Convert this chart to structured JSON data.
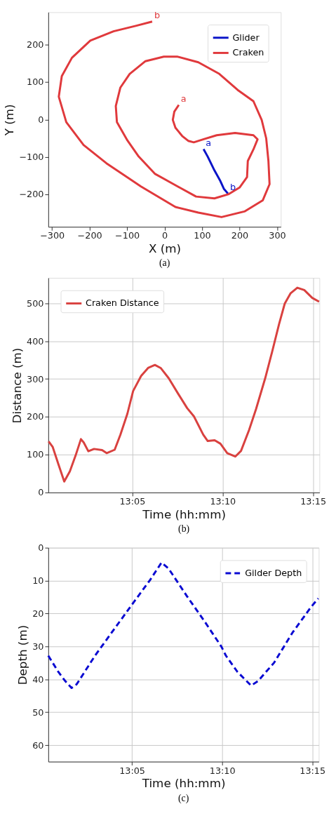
{
  "chart_data": [
    {
      "type": "line",
      "xlabel": "X (m)",
      "ylabel": "Y (m)",
      "xlim": [
        -310,
        310
      ],
      "ylim": [
        -287,
        287
      ],
      "xticks": [
        -300,
        -200,
        -100,
        0,
        100,
        200,
        300
      ],
      "yticks": [
        -200,
        -100,
        0,
        100,
        200
      ],
      "grid": false,
      "legend": "top right",
      "series": [
        {
          "name": "Glider",
          "color": "#0a14c8",
          "x": [
            104,
            115,
            133,
            148,
            158,
            169
          ],
          "values": [
            -79,
            -99,
            -136,
            -163,
            -185,
            -198
          ]
        },
        {
          "name": "Craken",
          "color": "#e0393c",
          "x": [
            38,
            26,
            22,
            29,
            47,
            63,
            78,
            103,
            139,
            188,
            237,
            248,
            237,
            222,
            220,
            200,
            170,
            133,
            84,
            35,
            -26,
            -69,
            -99,
            -127,
            -130,
            -118,
            -93,
            -51,
            -2,
            35,
            90,
            146,
            195,
            237,
            259,
            271,
            277,
            280,
            262,
            213,
            152,
            90,
            29,
            -63,
            -155,
            -216,
            -262,
            -282,
            -274,
            -247,
            -198,
            -136,
            -75,
            -33
          ],
          "values": [
            39,
            21,
            -1,
            -22,
            -44,
            -57,
            -61,
            -53,
            -42,
            -36,
            -42,
            -53,
            -80,
            -111,
            -154,
            -182,
            -200,
            -211,
            -206,
            -179,
            -145,
            -99,
            -56,
            -7,
            36,
            85,
            122,
            156,
            168,
            168,
            153,
            122,
            79,
            49,
            -1,
            -50,
            -111,
            -173,
            -216,
            -246,
            -261,
            -249,
            -234,
            -179,
            -117,
            -68,
            -7,
            61,
            116,
            165,
            211,
            236,
            251,
            262
          ]
        }
      ],
      "annotations": [
        {
          "text": "a",
          "x": 38,
          "y": 39
        },
        {
          "text": "b",
          "x": -33,
          "y": 262
        },
        {
          "text": "a",
          "x": 104,
          "y": -79
        },
        {
          "text": "b",
          "x": 169,
          "y": -198
        },
        "(a)"
      ]
    },
    {
      "type": "line",
      "xlabel": "Time (hh:mm)",
      "ylabel": "Distance (m)",
      "xlim": [
        13.006,
        13.256
      ],
      "ylim": [
        0,
        567
      ],
      "xticks": [
        {
          "value": 13.0833,
          "label": "13:05"
        },
        {
          "value": 13.1667,
          "label": "13:10"
        },
        {
          "value": 13.25,
          "label": "13:15"
        }
      ],
      "yticks": [
        0,
        100,
        200,
        300,
        400,
        500
      ],
      "grid": true,
      "legend": "top left",
      "series": [
        {
          "name": "Craken Distance",
          "color": "#d9413f",
          "x": [
            13.0063,
            13.0101,
            13.0154,
            13.0207,
            13.0259,
            13.0312,
            13.0361,
            13.0387,
            13.0429,
            13.0482,
            13.0556,
            13.0598,
            13.0672,
            13.0725,
            13.0789,
            13.0842,
            13.0916,
            13.098,
            13.1043,
            13.1096,
            13.117,
            13.1255,
            13.134,
            13.1403,
            13.1488,
            13.153,
            13.1594,
            13.1647,
            13.171,
            13.1784,
            13.1837,
            13.1911,
            13.1975,
            13.206,
            13.2123,
            13.2187,
            13.224,
            13.2293,
            13.2356,
            13.242,
            13.2494,
            13.2557
          ],
          "values": [
            135,
            120,
            74,
            29,
            56,
            98,
            141,
            132,
            109,
            115,
            112,
            104,
            113,
            153,
            208,
            268,
            308,
            329,
            337,
            329,
            302,
            262,
            223,
            201,
            153,
            136,
            138,
            129,
            104,
            95,
            110,
            165,
            220,
            302,
            371,
            444,
            499,
            526,
            541,
            535,
            514,
            504
          ]
        }
      ],
      "annotations": [
        "(b)"
      ]
    },
    {
      "type": "line",
      "xlabel": "Time (hh:mm)",
      "ylabel": "Depth (m)",
      "xlim": [
        13.006,
        13.256
      ],
      "ylim": [
        65,
        0
      ],
      "xticks": [
        {
          "value": 13.0833,
          "label": "13:05"
        },
        {
          "value": 13.1667,
          "label": "13:10"
        },
        {
          "value": 13.25,
          "label": "13:15"
        }
      ],
      "yticks": [
        0,
        10,
        20,
        30,
        40,
        50,
        60
      ],
      "grid": true,
      "legend": "top right",
      "line_style": "dashed",
      "series": [
        {
          "name": "Gilder Depth",
          "color": "#0a0ad2",
          "x": [
            13.006,
            13.0152,
            13.0216,
            13.0275,
            13.0322,
            13.0492,
            13.0661,
            13.0831,
            13.1001,
            13.1107,
            13.1171,
            13.1341,
            13.1511,
            13.1659,
            13.1702,
            13.1808,
            13.1935,
            13.1999,
            13.2148,
            13.2317,
            13.2487,
            13.2555
          ],
          "values": [
            32.8,
            37.7,
            40.5,
            42.6,
            41.5,
            32.8,
            25.1,
            17.4,
            9.8,
            4.5,
            6.3,
            14.7,
            22.7,
            30.0,
            32.8,
            37.7,
            41.9,
            40.5,
            34.9,
            25.8,
            18.1,
            15.4
          ]
        }
      ],
      "annotations": [
        "(c)"
      ]
    }
  ]
}
